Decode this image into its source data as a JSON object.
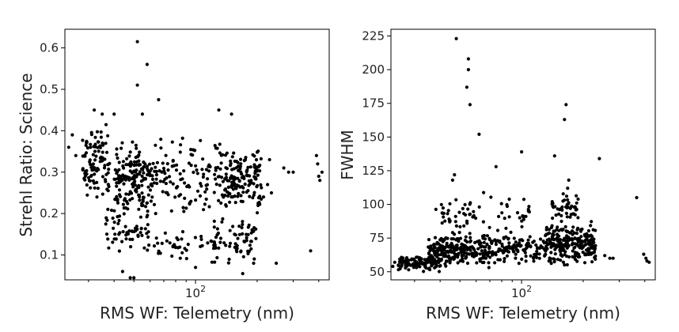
{
  "chart_data": [
    {
      "type": "scatter",
      "title": "",
      "xlabel": "RMS WF: Telemetry (nm)",
      "ylabel": "Strehl Ratio: Science",
      "xscale": "log",
      "xlim": [
        23,
        450
      ],
      "ylim": [
        0.04,
        0.645
      ],
      "xticks": [
        {
          "value": 100,
          "base": "10",
          "exp": "2"
        }
      ],
      "yticks": [
        0.1,
        0.2,
        0.3,
        0.4,
        0.5,
        0.6
      ],
      "grid": false,
      "marker_color": "#000000",
      "seed": 11,
      "clusters": [
        {
          "n": 170,
          "x": [
            40,
            62
          ],
          "y": [
            0.2,
            0.38
          ]
        },
        {
          "n": 95,
          "x": [
            28,
            38
          ],
          "y": [
            0.24,
            0.42
          ]
        },
        {
          "n": 140,
          "x": [
            140,
            210
          ],
          "y": [
            0.2,
            0.36
          ]
        },
        {
          "n": 130,
          "x": [
            62,
            140
          ],
          "y": [
            0.18,
            0.4
          ]
        },
        {
          "n": 60,
          "x": [
            36,
            60
          ],
          "y": [
            0.1,
            0.22
          ]
        },
        {
          "n": 70,
          "x": [
            120,
            200
          ],
          "y": [
            0.07,
            0.2
          ]
        },
        {
          "n": 40,
          "x": [
            60,
            130
          ],
          "y": [
            0.08,
            0.16
          ]
        }
      ],
      "points": [
        [
          52,
          0.615
        ],
        [
          58,
          0.56
        ],
        [
          52,
          0.51
        ],
        [
          66,
          0.475
        ],
        [
          55,
          0.44
        ],
        [
          40,
          0.44
        ],
        [
          32,
          0.45
        ],
        [
          35,
          0.44
        ],
        [
          130,
          0.45
        ],
        [
          150,
          0.44
        ],
        [
          248,
          0.08
        ],
        [
          365,
          0.11
        ],
        [
          390,
          0.34
        ],
        [
          395,
          0.32
        ],
        [
          400,
          0.29
        ],
        [
          415,
          0.3
        ],
        [
          405,
          0.28
        ],
        [
          285,
          0.3
        ],
        [
          270,
          0.31
        ],
        [
          300,
          0.3
        ],
        [
          225,
          0.27
        ],
        [
          235,
          0.25
        ],
        [
          230,
          0.33
        ],
        [
          215,
          0.24
        ],
        [
          48,
          0.045
        ],
        [
          50,
          0.045
        ],
        [
          44,
          0.06
        ],
        [
          100,
          0.07
        ],
        [
          170,
          0.055
        ],
        [
          24,
          0.36
        ],
        [
          25,
          0.39
        ],
        [
          26,
          0.34
        ],
        [
          33,
          0.24
        ]
      ]
    },
    {
      "type": "scatter",
      "title": "",
      "xlabel": "RMS WF: Telemetry (nm)",
      "ylabel": "FWHM",
      "xscale": "log",
      "xlim": [
        23,
        450
      ],
      "ylim": [
        44,
        230
      ],
      "xticks": [
        {
          "value": 100,
          "base": "10",
          "exp": "2"
        }
      ],
      "yticks": [
        50,
        75,
        100,
        125,
        150,
        175,
        200,
        225
      ],
      "grid": false,
      "marker_color": "#000000",
      "seed": 29,
      "clusters": [
        {
          "n": 230,
          "x": [
            35,
            70
          ],
          "y": [
            52,
            80
          ]
        },
        {
          "n": 110,
          "x": [
            25,
            40
          ],
          "y": [
            50,
            62
          ]
        },
        {
          "n": 230,
          "x": [
            130,
            230
          ],
          "y": [
            54,
            88
          ]
        },
        {
          "n": 130,
          "x": [
            70,
            135
          ],
          "y": [
            55,
            78
          ]
        },
        {
          "n": 45,
          "x": [
            140,
            190
          ],
          "y": [
            85,
            108
          ]
        },
        {
          "n": 40,
          "x": [
            38,
            60
          ],
          "y": [
            78,
            105
          ]
        },
        {
          "n": 30,
          "x": [
            62,
            110
          ],
          "y": [
            78,
            112
          ]
        }
      ],
      "points": [
        [
          48,
          223
        ],
        [
          55,
          208
        ],
        [
          55,
          200
        ],
        [
          54,
          187
        ],
        [
          56,
          174
        ],
        [
          62,
          152
        ],
        [
          47,
          122
        ],
        [
          46,
          118
        ],
        [
          75,
          128
        ],
        [
          100,
          139
        ],
        [
          145,
          136
        ],
        [
          165,
          174
        ],
        [
          162,
          163
        ],
        [
          170,
          118
        ],
        [
          168,
          112
        ],
        [
          240,
          134
        ],
        [
          365,
          105
        ],
        [
          395,
          63
        ],
        [
          405,
          60
        ],
        [
          420,
          57
        ],
        [
          410,
          58
        ],
        [
          255,
          62
        ],
        [
          270,
          60
        ],
        [
          280,
          60
        ],
        [
          24,
          57
        ],
        [
          25,
          55
        ],
        [
          27,
          58
        ],
        [
          23.5,
          54
        ]
      ]
    }
  ]
}
